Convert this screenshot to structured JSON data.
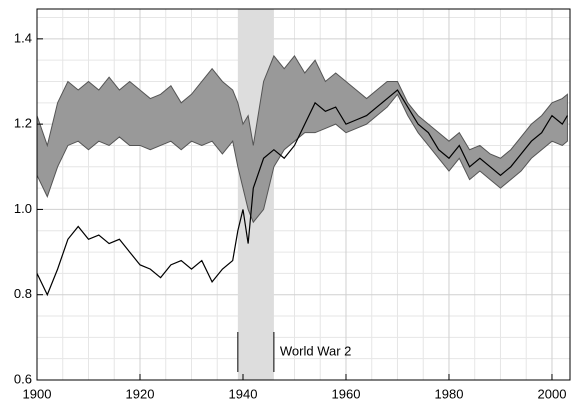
{
  "chart_data": {
    "type": "band-line",
    "x": [
      1900,
      1902,
      1904,
      1906,
      1908,
      1910,
      1912,
      1914,
      1916,
      1918,
      1920,
      1922,
      1924,
      1926,
      1928,
      1930,
      1932,
      1934,
      1936,
      1938,
      1939,
      1940,
      1941,
      1942,
      1944,
      1946,
      1948,
      1950,
      1952,
      1954,
      1956,
      1958,
      1960,
      1962,
      1964,
      1966,
      1968,
      1970,
      1972,
      1974,
      1976,
      1978,
      1980,
      1982,
      1984,
      1986,
      1988,
      1990,
      1992,
      1994,
      1996,
      1998,
      2000,
      2002,
      2003
    ],
    "line": {
      "color": "#000000",
      "values": [
        0.85,
        0.8,
        0.86,
        0.93,
        0.96,
        0.93,
        0.94,
        0.92,
        0.93,
        0.9,
        0.87,
        0.86,
        0.84,
        0.87,
        0.88,
        0.86,
        0.88,
        0.83,
        0.86,
        0.88,
        0.95,
        1.0,
        0.92,
        1.05,
        1.12,
        1.14,
        1.12,
        1.15,
        1.2,
        1.25,
        1.23,
        1.24,
        1.2,
        1.21,
        1.22,
        1.24,
        1.26,
        1.28,
        1.24,
        1.2,
        1.18,
        1.14,
        1.12,
        1.15,
        1.1,
        1.12,
        1.1,
        1.08,
        1.1,
        1.13,
        1.16,
        1.18,
        1.22,
        1.2,
        1.22
      ]
    },
    "band": {
      "color": "#999999",
      "edge_color": "#555555",
      "upper": [
        1.22,
        1.15,
        1.25,
        1.3,
        1.28,
        1.3,
        1.28,
        1.31,
        1.28,
        1.3,
        1.28,
        1.26,
        1.27,
        1.29,
        1.25,
        1.27,
        1.3,
        1.33,
        1.3,
        1.28,
        1.25,
        1.2,
        1.22,
        1.15,
        1.3,
        1.36,
        1.33,
        1.36,
        1.32,
        1.35,
        1.3,
        1.32,
        1.3,
        1.28,
        1.26,
        1.28,
        1.3,
        1.3,
        1.25,
        1.22,
        1.2,
        1.18,
        1.16,
        1.18,
        1.14,
        1.15,
        1.13,
        1.12,
        1.14,
        1.17,
        1.2,
        1.22,
        1.25,
        1.26,
        1.27
      ],
      "lower": [
        1.08,
        1.03,
        1.1,
        1.15,
        1.16,
        1.14,
        1.16,
        1.15,
        1.17,
        1.15,
        1.15,
        1.14,
        1.15,
        1.16,
        1.14,
        1.16,
        1.15,
        1.16,
        1.13,
        1.16,
        1.1,
        1.05,
        1.0,
        0.97,
        1.0,
        1.1,
        1.14,
        1.16,
        1.18,
        1.18,
        1.19,
        1.2,
        1.18,
        1.19,
        1.2,
        1.22,
        1.24,
        1.27,
        1.22,
        1.18,
        1.15,
        1.12,
        1.09,
        1.12,
        1.07,
        1.09,
        1.07,
        1.05,
        1.07,
        1.09,
        1.12,
        1.14,
        1.16,
        1.15,
        1.16
      ]
    },
    "shade": [
      1939,
      1946
    ],
    "shade_color": "#dddddd",
    "annotation": "World War 2",
    "xlim": [
      1900,
      2003.5
    ],
    "ylim": [
      0.6,
      1.47
    ],
    "xticks": [
      1900,
      1920,
      1940,
      1960,
      1980,
      2000
    ],
    "yticks": [
      {
        "value": 0.6,
        "label": "0.6"
      },
      {
        "value": 0.8,
        "label": "0.8"
      },
      {
        "value": 1.0,
        "label": "1.0"
      },
      {
        "value": 1.2,
        "label": "1.2"
      },
      {
        "value": 1.4,
        "label": "1.4"
      }
    ],
    "minor_xticks": [
      1905,
      1910,
      1915,
      1925,
      1930,
      1935,
      1945,
      1950,
      1955,
      1965,
      1970,
      1975,
      1985,
      1990,
      1995
    ],
    "minor_yticks": [
      0.65,
      0.7,
      0.75,
      0.85,
      0.9,
      0.95,
      1.05,
      1.1,
      1.15,
      1.25,
      1.3,
      1.35,
      1.45
    ],
    "grid": true
  }
}
